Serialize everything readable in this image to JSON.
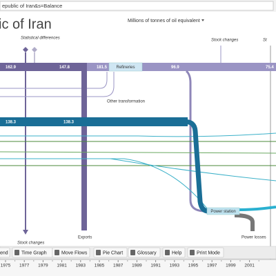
{
  "browser": {
    "url": "epublic of Iran&s=Balance"
  },
  "header": {
    "title": "ic of Iran",
    "unit_selector": "Millions of tonnes of oil equivalent"
  },
  "diagram": {
    "nodes": [
      {
        "label": "Refineries"
      },
      {
        "label": "Power station"
      }
    ],
    "flow_labels": [
      "Statistical differences",
      "Stock changes",
      "St",
      "Other transformation",
      "Exports",
      "Stock changes",
      "Power losses"
    ],
    "flow_values": [
      162.9,
      147.8,
      181.5,
      96.9,
      75.4,
      138.3,
      138.3
    ]
  },
  "toolbar": {
    "buttons": [
      "end",
      "Time Graph",
      "Move Flows",
      "Pie Chart",
      "Glossary",
      "Help",
      "Print Mode"
    ]
  },
  "timeline": {
    "years": [
      1975,
      1977,
      1979,
      1981,
      1983,
      1985,
      1987,
      1989,
      1991,
      1993,
      1995,
      1997,
      1999,
      2001
    ]
  }
}
